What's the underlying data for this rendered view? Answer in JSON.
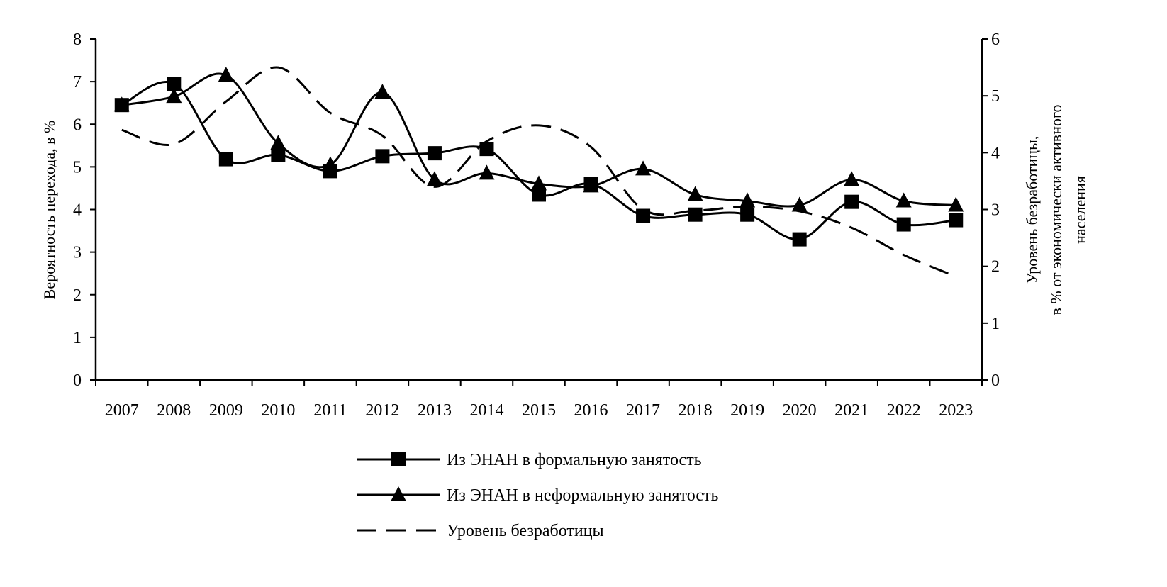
{
  "chart_data": {
    "type": "line",
    "categories": [
      "2007",
      "2008",
      "2009",
      "2010",
      "2011",
      "2012",
      "2013",
      "2014",
      "2015",
      "2016",
      "2017",
      "2018",
      "2019",
      "2020",
      "2021",
      "2022",
      "2023"
    ],
    "left_axis": {
      "label": "Вероятность перехода, в %",
      "ylim": [
        0,
        8
      ],
      "ticks": [
        "0",
        "1",
        "2",
        "3",
        "4",
        "5",
        "6",
        "7",
        "8"
      ]
    },
    "right_axis": {
      "label_lines": [
        "Уровень безработицы,",
        "в % от экономически активного",
        "населения"
      ],
      "ylim": [
        0,
        6
      ],
      "ticks": [
        "0",
        "1",
        "2",
        "3",
        "4",
        "5",
        "6"
      ]
    },
    "series": [
      {
        "name": "Из ЭНАН в формальную занятость",
        "axis": "left",
        "marker": "square",
        "values": [
          6.45,
          6.95,
          5.18,
          5.28,
          4.9,
          5.25,
          5.32,
          5.42,
          4.35,
          4.6,
          3.85,
          3.88,
          3.88,
          3.3,
          4.18,
          3.65,
          3.75
        ]
      },
      {
        "name": "Из ЭНАН в неформальную занятость",
        "axis": "left",
        "marker": "triangle",
        "values": [
          6.45,
          6.65,
          7.15,
          5.55,
          5.05,
          6.75,
          4.7,
          4.85,
          4.6,
          4.55,
          4.95,
          4.35,
          4.2,
          4.1,
          4.7,
          4.2,
          4.1
        ]
      },
      {
        "name": "Уровень безработицы",
        "axis": "right",
        "marker": "none",
        "dashed": true,
        "values": [
          4.4,
          4.15,
          4.9,
          5.5,
          4.7,
          4.3,
          3.4,
          4.2,
          4.48,
          4.1,
          3.0,
          2.98,
          3.05,
          2.97,
          2.68,
          2.2,
          1.82
        ]
      }
    ],
    "legend_position": "bottom-center",
    "grid": false
  }
}
